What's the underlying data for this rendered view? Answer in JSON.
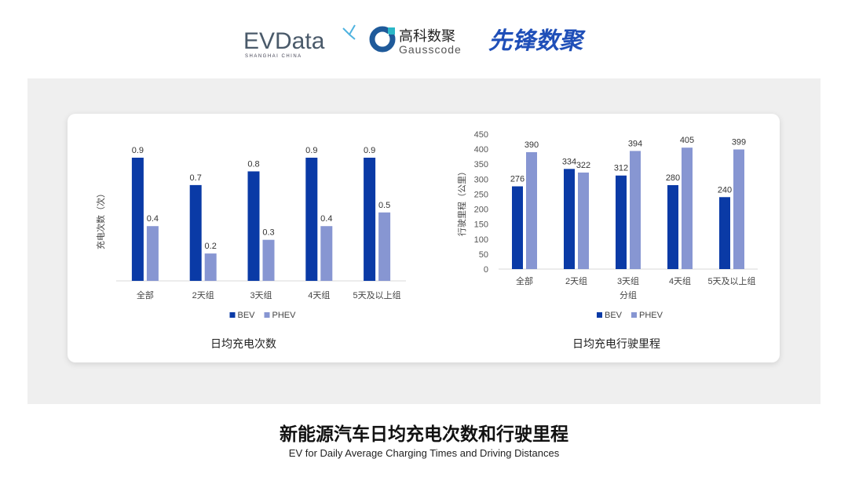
{
  "logos": {
    "evdata": {
      "text": "EVData",
      "tagline": "SHANGHAI CHINA"
    },
    "gausscode": {
      "cn": "高科数聚",
      "en": "Gausscode"
    },
    "xianfeng": {
      "text": "先锋数聚"
    }
  },
  "colors": {
    "bev": "#0a3aa6",
    "phev": "#8796d2",
    "panel": "#efefef"
  },
  "chart_data": [
    {
      "type": "bar",
      "title": "日均充电次数",
      "ylabel": "充电次数（次）",
      "xlabel": "",
      "categories": [
        "全部",
        "2天组",
        "3天组",
        "4天组",
        "5天及以上组"
      ],
      "series": [
        {
          "name": "BEV",
          "values": [
            0.9,
            0.7,
            0.8,
            0.9,
            0.9
          ]
        },
        {
          "name": "PHEV",
          "values": [
            0.4,
            0.2,
            0.3,
            0.4,
            0.5
          ]
        }
      ],
      "ylim": [
        0,
        1.0
      ],
      "yaxis_ticks_shown": false,
      "grid": false,
      "legend": "bottom"
    },
    {
      "type": "bar",
      "title": "日均充电行驶里程",
      "ylabel": "行驶里程（公里）",
      "xlabel": "分组",
      "categories": [
        "全部",
        "2天组",
        "3天组",
        "4天组",
        "5天及以上组"
      ],
      "series": [
        {
          "name": "BEV",
          "values": [
            276,
            334,
            312,
            280,
            240
          ]
        },
        {
          "name": "PHEV",
          "values": [
            390,
            322,
            394,
            405,
            399
          ]
        }
      ],
      "ylim": [
        0,
        450
      ],
      "yticks": [
        0,
        50,
        100,
        150,
        200,
        250,
        300,
        350,
        400,
        450
      ],
      "grid": false,
      "legend": "bottom"
    }
  ],
  "footer": {
    "title": "新能源汽车日均充电次数和行驶里程",
    "subtitle": "EV for Daily Average Charging Times and Driving Distances"
  }
}
